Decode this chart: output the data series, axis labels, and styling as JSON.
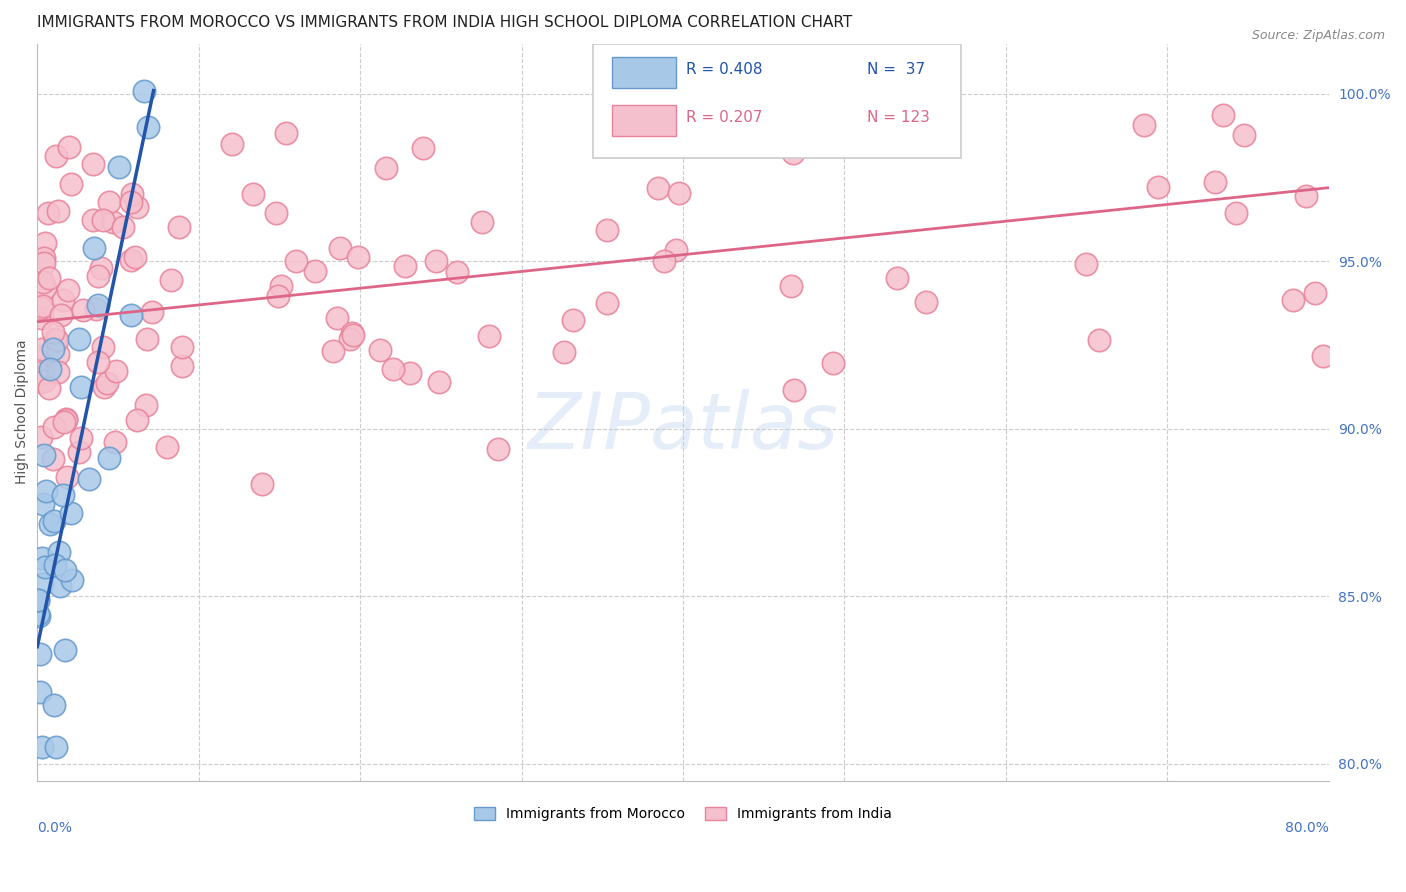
{
  "title": "IMMIGRANTS FROM MOROCCO VS IMMIGRANTS FROM INDIA HIGH SCHOOL DIPLOMA CORRELATION CHART",
  "source": "Source: ZipAtlas.com",
  "ylabel": "High School Diploma",
  "legend_blue_R": "R = 0.408",
  "legend_blue_N": "N =  37",
  "legend_pink_R": "R = 0.207",
  "legend_pink_N": "N = 123",
  "legend_label_blue": "Immigrants from Morocco",
  "legend_label_pink": "Immigrants from India",
  "watermark": "ZIPatlas",
  "blue_color": "#a8c8e8",
  "blue_edge_color": "#6699cc",
  "pink_color": "#f5c0cd",
  "pink_edge_color": "#e8829a",
  "blue_line_color": "#2255aa",
  "pink_line_color": "#dd6688",
  "right_tick_color": "#4472c4",
  "xlim": [
    0.0,
    0.8
  ],
  "ylim": [
    0.795,
    1.015
  ],
  "right_yticks": [
    1.0,
    0.95,
    0.9,
    0.85,
    0.8
  ],
  "right_yticklabels": [
    "100.0%",
    "95.0%",
    "90.0%",
    "85.0%",
    "80.0%"
  ],
  "blue_line_x0": 0.0,
  "blue_line_y0": 0.835,
  "blue_line_x1": 0.072,
  "blue_line_y1": 1.001,
  "pink_line_x0": 0.0,
  "pink_line_y0": 0.932,
  "pink_line_x1": 0.8,
  "pink_line_y1": 0.972
}
